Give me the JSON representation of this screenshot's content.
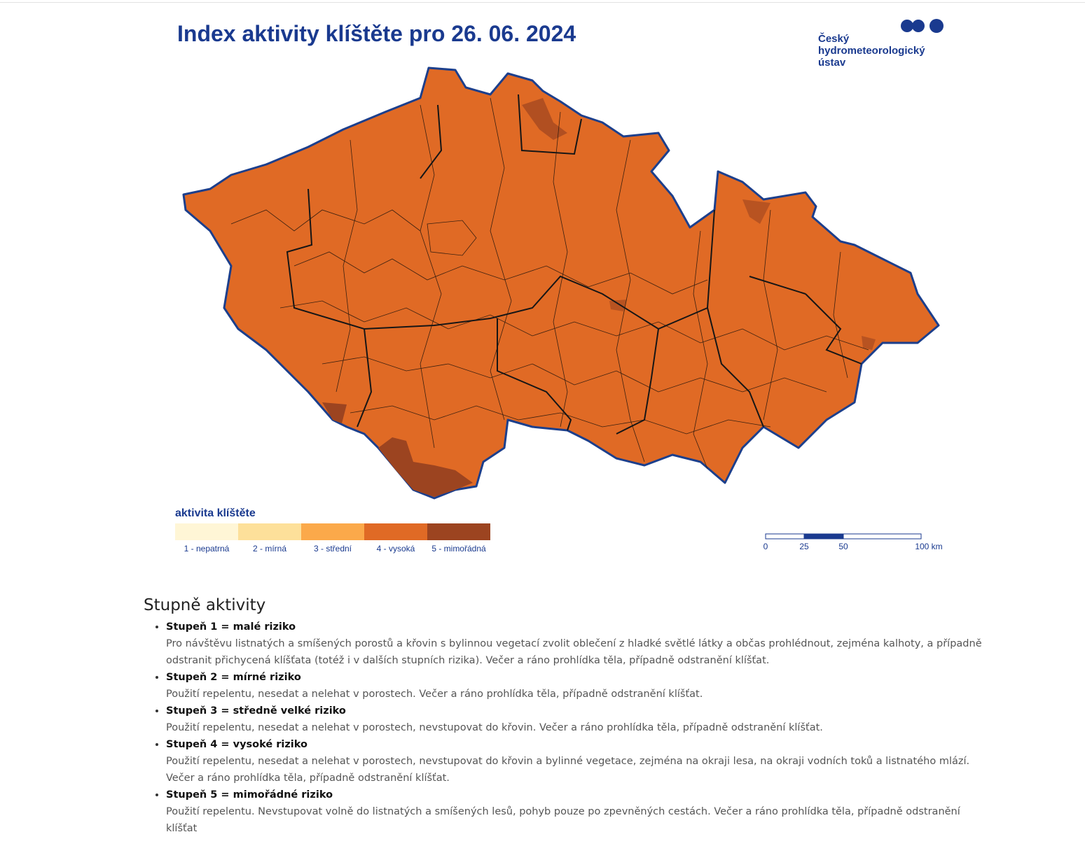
{
  "header": {
    "title": "Index aktivity klíštěte pro 26. 06. 2024",
    "logo": [
      "Český",
      "hydrometeorologický",
      "ústav"
    ]
  },
  "legend": {
    "title": "aktivita klíštěte",
    "items": [
      {
        "label": "1 - nepatrná",
        "color": "#fff6d6"
      },
      {
        "label": "2 - mírná",
        "color": "#fde09a"
      },
      {
        "label": "3 - střední",
        "color": "#fba94a"
      },
      {
        "label": "4 - vysoká",
        "color": "#e06a25"
      },
      {
        "label": "5 - mimořádná",
        "color": "#9c4420"
      }
    ]
  },
  "map": {
    "fill": "#e06a25",
    "hotspot_fill": "#9c4420",
    "border_color": "#1c3f8c"
  },
  "scale_bar": {
    "labels": [
      "0",
      "25",
      "50",
      "100 km"
    ]
  },
  "section": {
    "heading": "Stupně aktivity",
    "items": [
      {
        "title": "Stupeň 1 = malé riziko",
        "text": "Pro návštěvu listnatých a smíšených porostů a křovin s bylinnou vegetací zvolit oblečení z hladké světlé látky a občas prohlédnout, zejména kalhoty, a případně odstranit přichycená klíšťata (totéž i v dalších stupních rizika). Večer a ráno prohlídka těla, případně odstranění klíšťat."
      },
      {
        "title": "Stupeň 2 = mírné riziko",
        "text": "Použití repelentu, nesedat a nelehat v porostech. Večer a ráno prohlídka těla, případně odstranění klíšťat."
      },
      {
        "title": "Stupeň 3 = středně velké riziko",
        "text": "Použití repelentu, nesedat a nelehat v porostech, nevstupovat do křovin. Večer a ráno prohlídka těla, případně odstranění klíšťat."
      },
      {
        "title": "Stupeň 4 = vysoké riziko",
        "text": "Použití repelentu, nesedat a nelehat v porostech, nevstupovat do křovin a bylinné vegetace, zejména na okraji lesa, na okraji vodních toků a listnatého mlází. Večer a ráno prohlídka těla, případně odstranění klíšťat."
      },
      {
        "title": "Stupeň 5 = mimořádné riziko",
        "text": "Použití repelentu. Nevstupovat volně do listnatých a smíšených lesů, pohyb pouze po zpevněných cestách. Večer a ráno prohlídka těla, případně odstranění klíšťat"
      }
    ]
  }
}
